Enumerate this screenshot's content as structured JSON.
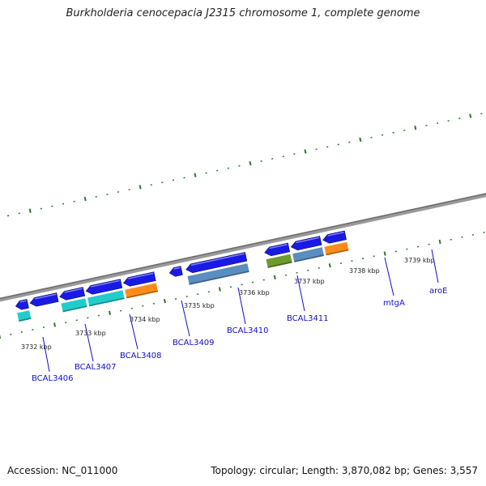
{
  "header": {
    "title": "Burkholderia cenocepacia J2315 chromosome 1, complete genome"
  },
  "footer": {
    "accession": "Accession: NC_011000",
    "summary": "Topology: circular; Length: 3,870,082 bp; Genes: 3,557"
  },
  "colors": {
    "backbone": "#8a8a8a",
    "cds_forward": "#1a1ae6",
    "cds_reverse": "#1a1ae6",
    "cog_cyan": "#22cccc",
    "cog_orange": "#ff8c1a",
    "cog_steelblue": "#5a8dc0",
    "cog_olive": "#6e9a2e",
    "tick": "#2a7a2a",
    "gene_label": "#1010c8"
  },
  "position_labels": [
    "3732 kbp",
    "3733 kbp",
    "3734 kbp",
    "3735 kbp",
    "3736 kbp",
    "3737 kbp",
    "3738 kbp",
    "3739 kbp"
  ],
  "gene_labels": [
    "BCAL3406",
    "BCAL3407",
    "BCAL3408",
    "BCAL3409",
    "BCAL3410",
    "BCAL3411",
    "mtgA",
    "aroE"
  ],
  "features": [
    {
      "strand": "reverse",
      "track": "cds",
      "color": "cds_reverse",
      "start_kbp": 3731.6,
      "end_kbp": 3731.82
    },
    {
      "strand": "reverse",
      "track": "cds",
      "color": "cds_reverse",
      "start_kbp": 3731.86,
      "end_kbp": 3732.36
    },
    {
      "strand": "reverse",
      "track": "cds",
      "color": "cds_reverse",
      "start_kbp": 3732.4,
      "end_kbp": 3732.84
    },
    {
      "strand": "reverse",
      "track": "cds",
      "color": "cds_reverse",
      "start_kbp": 3732.88,
      "end_kbp": 3733.52
    },
    {
      "strand": "reverse",
      "track": "cds",
      "color": "cds_forward",
      "start_kbp": 3733.56,
      "end_kbp": 3734.13
    },
    {
      "strand": "reverse",
      "track": "cds",
      "color": "cds_reverse",
      "start_kbp": 3734.4,
      "end_kbp": 3734.62
    },
    {
      "strand": "reverse",
      "track": "cds",
      "color": "cds_forward",
      "start_kbp": 3734.7,
      "end_kbp": 3735.79
    },
    {
      "strand": "reverse",
      "track": "cds",
      "color": "cds_forward",
      "start_kbp": 3736.13,
      "end_kbp": 3736.57
    },
    {
      "strand": "reverse",
      "track": "cds",
      "color": "cds_forward",
      "start_kbp": 3736.61,
      "end_kbp": 3737.15
    },
    {
      "strand": "reverse",
      "track": "cds",
      "color": "cds_forward",
      "start_kbp": 3737.19,
      "end_kbp": 3737.6
    },
    {
      "strand": "reverse",
      "track": "cog",
      "color": "cog_cyan",
      "start_kbp": 3731.6,
      "end_kbp": 3731.82
    },
    {
      "strand": "reverse",
      "track": "cog",
      "color": "cog_cyan",
      "start_kbp": 3732.4,
      "end_kbp": 3732.84
    },
    {
      "strand": "reverse",
      "track": "cog",
      "color": "cog_cyan",
      "start_kbp": 3732.88,
      "end_kbp": 3733.52
    },
    {
      "strand": "reverse",
      "track": "cog",
      "color": "cog_orange",
      "start_kbp": 3733.56,
      "end_kbp": 3734.13
    },
    {
      "strand": "reverse",
      "track": "cog",
      "color": "cog_steelblue",
      "start_kbp": 3734.7,
      "end_kbp": 3735.79
    },
    {
      "strand": "reverse",
      "track": "cog",
      "color": "cog_olive",
      "start_kbp": 3736.13,
      "end_kbp": 3736.57
    },
    {
      "strand": "reverse",
      "track": "cog",
      "color": "cog_steelblue",
      "start_kbp": 3736.61,
      "end_kbp": 3737.15
    },
    {
      "strand": "reverse",
      "track": "cog",
      "color": "cog_orange",
      "start_kbp": 3737.19,
      "end_kbp": 3737.6
    }
  ]
}
